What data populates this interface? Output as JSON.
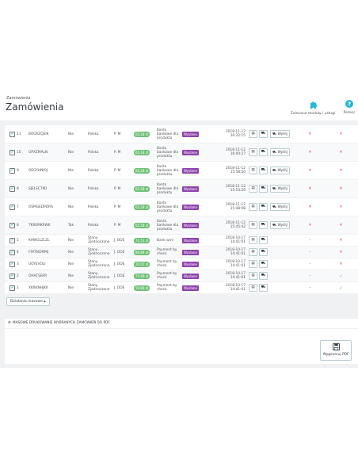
{
  "header": {
    "breadcrumb": "Zamówienia",
    "title": "Zamówienia",
    "buttons": [
      {
        "label": "Zalecane moduły i usługi",
        "icon": "puzzle-icon"
      },
      {
        "label": "Pomoc",
        "icon": "help-icon"
      }
    ]
  },
  "orders": [
    {
      "id": "11",
      "ref": "BOOXZQEIK",
      "new": "Nie",
      "country": "Polska",
      "customer": "P. M",
      "total": "65,18 zł",
      "payment": [
        "Konto",
        "bankowe dla",
        "produktu"
      ],
      "state": "Wysłane",
      "date": [
        "2018-11-12",
        "16:22:15"
      ],
      "ship": "Wyślij",
      "col1": "x",
      "col2": "x"
    },
    {
      "id": "10",
      "ref": "OPXZMALN",
      "new": "Nie",
      "country": "Polska",
      "customer": "P. M",
      "total": "65,18 zł",
      "payment": [
        "Konto",
        "bankowe dla",
        "produktu"
      ],
      "state": "Wysłane",
      "date": [
        "2018-11-12",
        "16:00:27"
      ],
      "ship": "Wyślij",
      "col1": "x",
      "col2": "x"
    },
    {
      "id": "9",
      "ref": "OEGYHNIOJ",
      "new": "Nie",
      "country": "Polska",
      "customer": "P. M",
      "total": "65,18 zł",
      "payment": [
        "Konto",
        "bankowe dla",
        "produktu"
      ],
      "state": "Wysłane",
      "date": [
        "2018-11-12",
        "15:58:50"
      ],
      "ship": "Wyślij",
      "col1": "x",
      "col2": "x"
    },
    {
      "id": "8",
      "ref": "SJELSCTKO",
      "new": "Nie",
      "country": "Polska",
      "customer": "P. M",
      "total": "65,18 zł",
      "payment": [
        "Konto",
        "bankowe dla",
        "produktu"
      ],
      "state": "Wysłane",
      "date": [
        "2018-11-12",
        "15:53:29"
      ],
      "ship": "Wyślij",
      "col1": "x",
      "col2": "x"
    },
    {
      "id": "7",
      "ref": "OSMGEDPORA",
      "new": "Nie",
      "country": "Polska",
      "customer": "P. M",
      "total": "65,18 zł",
      "payment": [
        "Konto",
        "bankowe dla",
        "produktu"
      ],
      "state": "Wysłane",
      "date": [
        "2018-11-12",
        "15:48:08"
      ],
      "ship": "Wyślij",
      "col1": "x",
      "col2": "x"
    },
    {
      "id": "6",
      "ref": "TKREMKRWK",
      "new": "Tak",
      "country": "Polska",
      "customer": "P. M",
      "total": "65,18 zł",
      "payment": [
        "Konto",
        "bankowe dla",
        "produktu"
      ],
      "state": "Wysłane",
      "date": [
        "2018-11-12",
        "15:45:42"
      ],
      "ship": "Wyślij",
      "col1": "x",
      "col2": "x"
    },
    {
      "id": "5",
      "ref": "KHWGLZLZL",
      "new": "Nie",
      "country": [
        "Stany",
        "Zjednoczone"
      ],
      "customer": "J. DOE",
      "total": "71,51 zł",
      "payment": [
        "Bank wire"
      ],
      "state": "Wysłane",
      "date": [
        "2018-10-17",
        "14:41:01"
      ],
      "ship": "",
      "col1": "-",
      "col2": "x"
    },
    {
      "id": "4",
      "ref": "FFATNOMMJ",
      "new": "Nie",
      "country": [
        "Stany",
        "Zjednoczone"
      ],
      "customer": "J. DOE",
      "total": "89,89 zł",
      "payment": [
        "Payment by",
        "check"
      ],
      "state": "Wysłane",
      "date": [
        "2018-10-17",
        "14:41:01"
      ],
      "ship": "",
      "col1": "-",
      "col2": "x"
    },
    {
      "id": "3",
      "ref": "UOYEVOLI",
      "new": "Nie",
      "country": [
        "Stany",
        "Zjednoczone"
      ],
      "customer": "J. DOE",
      "total": "70,01 zł",
      "payment": [
        "Payment by",
        "check"
      ],
      "state": "Wysłane",
      "date": [
        "2018-10-17",
        "14:41:01"
      ],
      "ship": "",
      "col1": "-",
      "col2": "x"
    },
    {
      "id": "2",
      "ref": "OHATSERR",
      "new": "Nie",
      "country": [
        "Stany",
        "Zjednoczone"
      ],
      "customer": "J. DOE",
      "total": "75,90 zł",
      "payment": [
        "Payment by",
        "check"
      ],
      "state": "Wysłane",
      "date": [
        "2018-10-17",
        "14:41:01"
      ],
      "ship": "",
      "col1": "-",
      "col2": "ok"
    },
    {
      "id": "1",
      "ref": "XKBKNHJKK",
      "new": "Nie",
      "country": [
        "Stany",
        "Zjednoczone"
      ],
      "customer": "J. DOE",
      "total": "59,80 zł",
      "payment": [
        "Payment by",
        "check"
      ],
      "state": "Wysłane",
      "date": [
        "2018-10-17",
        "14:41:01"
      ],
      "ship": "",
      "col1": "-",
      "col2": "ok"
    }
  ],
  "bulk_button": "Działania masowe ▴",
  "pdf": {
    "heading": "MASOWE DRUKOWANIE WYBRANYCH ZAMÓWIEŃ DO PDF",
    "button": "Wygeneruj PDF"
  },
  "colors": {
    "price": "#72c279",
    "state": "#8e44ad",
    "accent": "#25b9d7",
    "danger": "#e84e4e"
  }
}
